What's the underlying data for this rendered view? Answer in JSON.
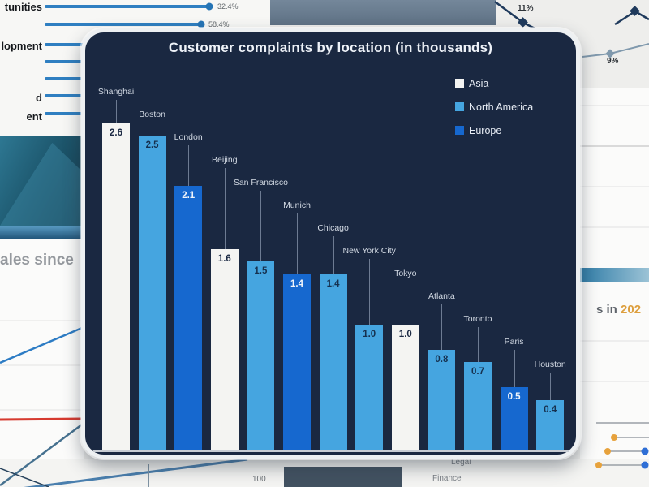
{
  "chart_data": {
    "type": "bar",
    "title": "Customer complaints by location (in thousands)",
    "categories": [
      "Shanghai",
      "Boston",
      "London",
      "Beijing",
      "San Francisco",
      "Munich",
      "Chicago",
      "New York City",
      "Tokyo",
      "Atlanta",
      "Toronto",
      "Paris",
      "Houston"
    ],
    "values": [
      2.6,
      2.5,
      2.1,
      1.6,
      1.5,
      1.4,
      1.4,
      1.0,
      1.0,
      0.8,
      0.7,
      0.5,
      0.4
    ],
    "display_values": [
      "2.6",
      "2.5",
      "2.1",
      "1.6",
      "1.5",
      "1.4",
      "1.4",
      "1.0",
      "1.0",
      "0.8",
      "0.7",
      "0.5",
      "0.4"
    ],
    "series_by_region": [
      "Asia",
      "North America",
      "Europe",
      "Asia",
      "North America",
      "Europe",
      "North America",
      "North America",
      "Asia",
      "North America",
      "North America",
      "Europe",
      "North America"
    ],
    "legend": [
      {
        "label": "Asia",
        "color": "#f4f4f2"
      },
      {
        "label": "North America",
        "color": "#45a5e0"
      },
      {
        "label": "Europe",
        "color": "#1668cf"
      }
    ],
    "value_text_colors": {
      "Asia": "#1c2a44",
      "North America": "#16314f",
      "Europe": "#f0f4fa"
    },
    "ylim": [
      0,
      2.8
    ],
    "grid": false,
    "legend_position": "top-right",
    "value_label_position": "inside-top",
    "card_background": "#1a2841"
  },
  "background": {
    "topleft_lollipop": {
      "line_color": "#2f7fc1",
      "row_label_0": "tunities",
      "row_label_2": "lopment",
      "row_label_5": "d",
      "row_label_6": "ent",
      "value_label_0": "32.4%",
      "value_label_1": "58.4%"
    },
    "topright_line_chart": {
      "point_label_1": "11%",
      "point_label_2": "9%"
    },
    "left_page": {
      "partial_title": "ales since"
    },
    "right_page": {
      "partial_title_prefix": "s in",
      "partial_title_year": "202",
      "year_color": "#dd9f3e"
    },
    "bottom": {
      "axis_value": "100",
      "category_label_1": "Legal",
      "category_label_2": "Finance"
    }
  }
}
